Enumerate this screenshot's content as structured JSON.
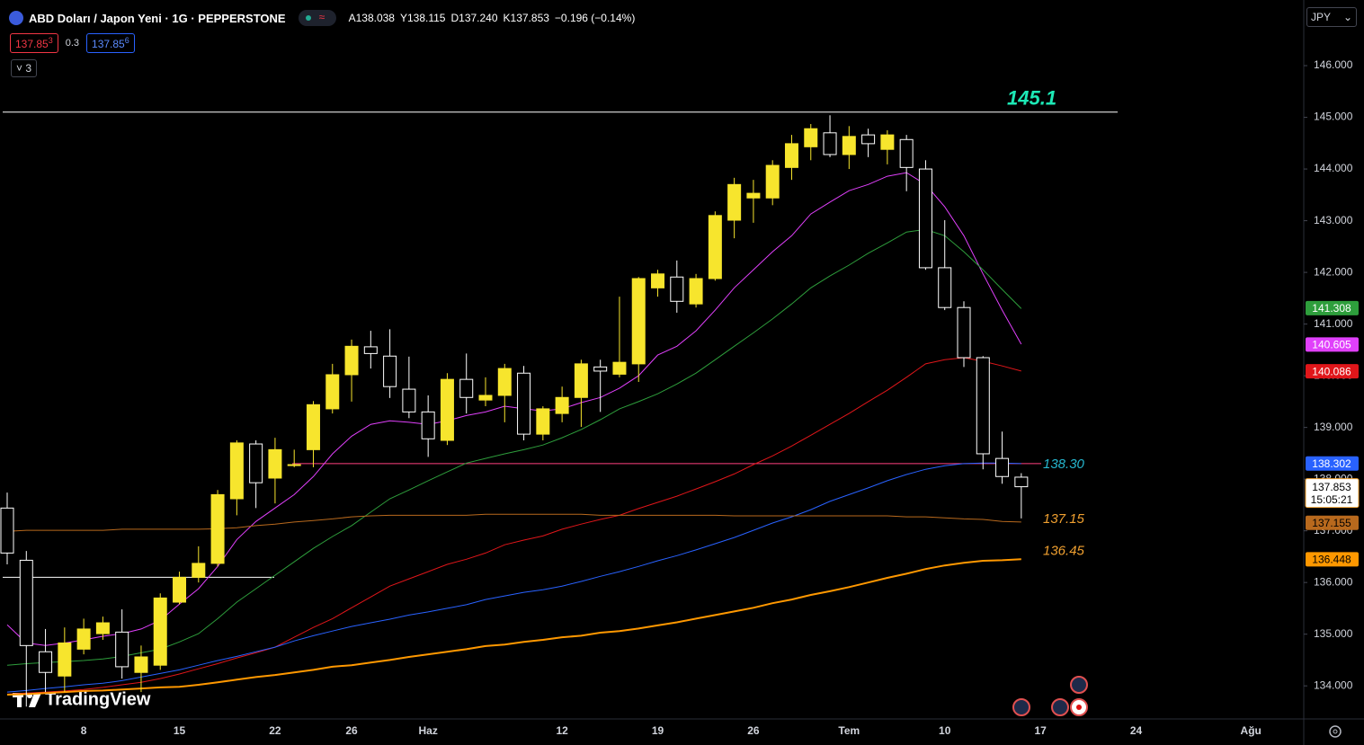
{
  "header": {
    "symbol": "ABD Doları / Japon Yeni · 1G · PEPPERSTONE",
    "ohlc": [
      "A138.038",
      "Y138.115",
      "D137.240",
      "K137.853"
    ],
    "change": "−0.196 (−0.14%)",
    "sell": {
      "main": "137.85",
      "pip": "3"
    },
    "spread": "0.3",
    "buy": {
      "main": "137.85",
      "pip": "6"
    },
    "indicators": "3",
    "currency": "JPY",
    "logo": "TradingView"
  },
  "chart_data": {
    "type": "candlestick",
    "categories": [
      null,
      null,
      null,
      null,
      "8",
      null,
      null,
      null,
      null,
      "15",
      null,
      null,
      null,
      null,
      "22",
      null,
      null,
      null,
      "26",
      null,
      null,
      null,
      "Haz",
      null,
      null,
      null,
      null,
      null,
      null,
      "12",
      null,
      null,
      null,
      null,
      "19",
      null,
      null,
      null,
      null,
      "26",
      null,
      null,
      null,
      null,
      "Tem",
      null,
      null,
      null,
      null,
      "10",
      null,
      null,
      null,
      null,
      "17",
      null,
      null,
      null,
      null,
      "24",
      null,
      null,
      null,
      null,
      null,
      "Ağu"
    ],
    "open": [
      137.44,
      136.43,
      134.66,
      134.19,
      134.71,
      135.01,
      135.04,
      134.26,
      134.4,
      135.62,
      136.1,
      136.37,
      137.62,
      138.68,
      138.02,
      138.27,
      138.57,
      139.36,
      140.02,
      140.56,
      140.38,
      139.74,
      139.3,
      138.75,
      139.93,
      139.53,
      139.62,
      140.05,
      138.87,
      139.27,
      139.58,
      140.17,
      140.03,
      140.23,
      141.7,
      141.91,
      141.39,
      141.88,
      143.01,
      143.44,
      143.44,
      144.03,
      144.43,
      144.7,
      144.28,
      144.66,
      144.38,
      144.57,
      144.0,
      142.09,
      141.32,
      140.35,
      138.4,
      138.038,
      null,
      null,
      null,
      null,
      null,
      null,
      null,
      null,
      null,
      null,
      null,
      null
    ],
    "high": [
      137.74,
      136.61,
      135.1,
      135.13,
      135.3,
      135.34,
      135.48,
      134.78,
      135.79,
      136.21,
      136.7,
      137.79,
      138.75,
      138.75,
      138.8,
      138.57,
      139.51,
      140.23,
      140.7,
      140.87,
      140.9,
      140.37,
      139.62,
      140.05,
      140.43,
      139.97,
      140.23,
      140.19,
      139.41,
      139.79,
      140.31,
      140.31,
      141.53,
      141.91,
      142.05,
      142.23,
      141.97,
      143.18,
      143.83,
      143.79,
      144.17,
      144.66,
      144.87,
      145.04,
      144.83,
      144.78,
      144.75,
      144.66,
      144.17,
      143.01,
      141.44,
      140.38,
      138.92,
      138.115,
      null,
      null,
      null,
      null,
      null,
      null,
      null,
      null,
      null,
      null,
      null,
      null
    ],
    "low": [
      136.35,
      133.6,
      133.88,
      133.88,
      134.61,
      134.89,
      134.14,
      133.88,
      134.31,
      135.58,
      136.0,
      136.31,
      137.3,
      137.44,
      137.53,
      138.23,
      138.23,
      139.27,
      139.5,
      140.14,
      139.57,
      139.18,
      138.43,
      138.66,
      139.27,
      139.41,
      139.1,
      138.75,
      138.75,
      139.1,
      139.01,
      139.3,
      139.97,
      139.88,
      141.53,
      141.22,
      141.32,
      141.84,
      142.66,
      142.96,
      143.3,
      143.79,
      144.17,
      144.23,
      144.0,
      144.23,
      144.09,
      143.57,
      142.05,
      141.27,
      140.17,
      138.19,
      137.91,
      137.24,
      null,
      null,
      null,
      null,
      null,
      null,
      null,
      null,
      null,
      null,
      null,
      null
    ],
    "close": [
      136.57,
      134.78,
      134.26,
      134.83,
      135.1,
      135.22,
      134.37,
      134.56,
      135.7,
      136.1,
      136.37,
      137.7,
      138.7,
      137.93,
      138.57,
      138.28,
      139.44,
      140.02,
      140.57,
      140.43,
      139.79,
      139.3,
      138.78,
      139.93,
      139.58,
      139.62,
      140.14,
      138.87,
      139.36,
      139.58,
      140.23,
      140.09,
      140.26,
      141.88,
      141.97,
      141.44,
      141.88,
      143.1,
      143.7,
      143.53,
      144.07,
      144.49,
      144.78,
      144.28,
      144.63,
      144.49,
      144.66,
      144.03,
      142.09,
      141.32,
      140.35,
      138.49,
      138.05,
      137.853,
      null,
      null,
      null,
      null,
      null,
      null,
      null,
      null,
      null,
      null,
      null,
      null
    ],
    "up_color": "#f7e52d",
    "down_color": "#000000",
    "down_border": "#ffffff",
    "series": [
      {
        "color": "#e040fb",
        "line_width": 1,
        "last_value": 140.605,
        "tag_text": "#ffffff",
        "values": [
          135.18,
          134.83,
          134.78,
          134.83,
          134.89,
          134.96,
          135.01,
          135.1,
          135.27,
          135.58,
          135.88,
          136.31,
          136.83,
          137.18,
          137.44,
          137.7,
          138.05,
          138.49,
          138.83,
          139.06,
          139.13,
          139.1,
          139.06,
          139.13,
          139.23,
          139.3,
          139.41,
          139.36,
          139.32,
          139.36,
          139.48,
          139.58,
          139.76,
          140.0,
          140.4,
          140.57,
          140.87,
          141.27,
          141.7,
          142.05,
          142.4,
          142.71,
          143.13,
          143.36,
          143.58,
          143.7,
          143.86,
          143.93,
          143.7,
          143.27,
          142.71,
          141.97,
          141.27,
          140.61,
          null,
          null,
          null,
          null,
          null,
          null,
          null,
          null,
          null,
          null,
          null,
          null
        ]
      },
      {
        "color": "#2e9e3c",
        "line_width": 1,
        "last_value": 141.308,
        "tag_text": "#ffffff",
        "values": [
          134.4,
          134.43,
          134.45,
          134.47,
          134.49,
          134.52,
          134.57,
          134.64,
          134.71,
          134.85,
          135.01,
          135.3,
          135.62,
          135.88,
          136.14,
          136.4,
          136.66,
          136.89,
          137.1,
          137.36,
          137.62,
          137.79,
          137.97,
          138.14,
          138.31,
          138.4,
          138.49,
          138.57,
          138.66,
          138.8,
          138.96,
          139.15,
          139.36,
          139.5,
          139.65,
          139.84,
          140.05,
          140.31,
          140.57,
          140.83,
          141.1,
          141.39,
          141.7,
          141.93,
          142.14,
          142.37,
          142.57,
          142.78,
          142.83,
          142.71,
          142.4,
          142.05,
          141.67,
          141.3,
          null,
          null,
          null,
          null,
          null,
          null,
          null,
          null,
          null,
          null,
          null,
          null
        ]
      },
      {
        "color": "#e0161a",
        "line_width": 1,
        "last_value": 140.086,
        "tag_text": "#ffffff",
        "values": [
          133.84,
          133.86,
          133.88,
          133.9,
          133.93,
          133.97,
          134.02,
          134.07,
          134.14,
          134.23,
          134.33,
          134.43,
          134.54,
          134.64,
          134.75,
          134.94,
          135.13,
          135.3,
          135.51,
          135.72,
          135.93,
          136.07,
          136.21,
          136.35,
          136.45,
          136.57,
          136.73,
          136.82,
          136.9,
          137.03,
          137.13,
          137.22,
          137.3,
          137.43,
          137.55,
          137.67,
          137.81,
          137.95,
          138.1,
          138.28,
          138.45,
          138.64,
          138.85,
          139.06,
          139.27,
          139.5,
          139.72,
          139.97,
          140.23,
          140.31,
          140.35,
          140.28,
          140.19,
          140.09,
          null,
          null,
          null,
          null,
          null,
          null,
          null,
          null,
          null,
          null,
          null,
          null
        ]
      },
      {
        "color": "#2962ff",
        "line_width": 1,
        "last_value": 138.302,
        "tag_text": "#ffffff",
        "values": [
          133.88,
          133.91,
          133.95,
          133.98,
          134.02,
          134.05,
          134.1,
          134.17,
          134.24,
          134.31,
          134.4,
          134.49,
          134.57,
          134.66,
          134.75,
          134.87,
          134.97,
          135.06,
          135.15,
          135.22,
          135.29,
          135.37,
          135.43,
          135.5,
          135.57,
          135.67,
          135.74,
          135.81,
          135.86,
          135.93,
          136.02,
          136.12,
          136.21,
          136.31,
          136.42,
          136.52,
          136.63,
          136.75,
          136.87,
          137.01,
          137.15,
          137.27,
          137.41,
          137.57,
          137.7,
          137.83,
          137.97,
          138.09,
          138.19,
          138.26,
          138.3,
          138.31,
          138.31,
          138.3,
          null,
          null,
          null,
          null,
          null,
          null,
          null,
          null,
          null,
          null,
          null,
          null
        ]
      },
      {
        "color": "#b8691d",
        "line_width": 1,
        "last_value": 137.155,
        "tag_text": "#000000",
        "values": [
          136.99,
          137.01,
          137.01,
          137.01,
          137.01,
          137.01,
          137.03,
          137.03,
          137.03,
          137.03,
          137.03,
          137.04,
          137.06,
          137.1,
          137.13,
          137.17,
          137.2,
          137.23,
          137.27,
          137.29,
          137.3,
          137.3,
          137.3,
          137.3,
          137.3,
          137.32,
          137.32,
          137.32,
          137.32,
          137.32,
          137.32,
          137.3,
          137.3,
          137.3,
          137.3,
          137.3,
          137.3,
          137.3,
          137.29,
          137.29,
          137.29,
          137.29,
          137.29,
          137.29,
          137.29,
          137.29,
          137.29,
          137.27,
          137.27,
          137.25,
          137.23,
          137.22,
          137.18,
          137.17,
          null,
          null,
          null,
          null,
          null,
          null,
          null,
          null,
          null,
          null,
          null,
          null
        ]
      },
      {
        "color": "#ff9800",
        "line_width": 2,
        "last_value": 136.448,
        "tag_text": "#000000",
        "values": [
          133.83,
          133.84,
          133.86,
          133.88,
          133.9,
          133.91,
          133.93,
          133.95,
          133.97,
          133.98,
          134.02,
          134.07,
          134.12,
          134.17,
          134.21,
          134.26,
          134.31,
          134.37,
          134.4,
          134.45,
          134.5,
          134.56,
          134.61,
          134.66,
          134.71,
          134.77,
          134.8,
          134.85,
          134.89,
          134.94,
          134.97,
          135.03,
          135.06,
          135.11,
          135.17,
          135.23,
          135.3,
          135.37,
          135.44,
          135.51,
          135.6,
          135.67,
          135.76,
          135.83,
          135.91,
          136.0,
          136.09,
          136.17,
          136.26,
          136.33,
          136.38,
          136.42,
          136.43,
          136.45,
          null,
          null,
          null,
          null,
          null,
          null,
          null,
          null,
          null,
          null,
          null,
          null
        ]
      }
    ],
    "levels": [
      {
        "value": 145.1,
        "line_color": "#ffffff",
        "label_color": "#1de9b6"
      },
      {
        "value": {
          "value": 138.3,
          "label": "138.30"
        },
        "line_color": "#ff4081",
        "label_color": "#26b7cf"
      },
      {
        "value": 137.15,
        "label_color": "#f0a030"
      },
      {
        "value": 136.45,
        "label_color": "#f0a030"
      },
      {
        "value": 136.1,
        "line_color": "#ffffff"
      }
    ],
    "countdown": "15:05:21",
    "ylim": [
      133.36,
      147.27
    ],
    "yticks": [
      {
        "value": 134,
        "label": "134.000"
      },
      {
        "value": 135,
        "label": "135.000"
      },
      {
        "value": 136,
        "label": "136.000"
      },
      {
        "value": 137,
        "label": "137.000"
      },
      {
        "value": 138,
        "label": "138.000"
      },
      {
        "value": 139,
        "label": "139.000"
      },
      {
        "value": 140,
        "label": "140.000"
      },
      {
        "value": 141,
        "label": "141.000"
      },
      {
        "value": 142,
        "label": "142.000"
      },
      {
        "value": 143,
        "label": "143.000"
      },
      {
        "value": 144,
        "label": "144.000"
      },
      {
        "value": 145,
        "label": "145.000"
      },
      {
        "value": 146,
        "label": "146.000"
      }
    ],
    "grid": false
  }
}
